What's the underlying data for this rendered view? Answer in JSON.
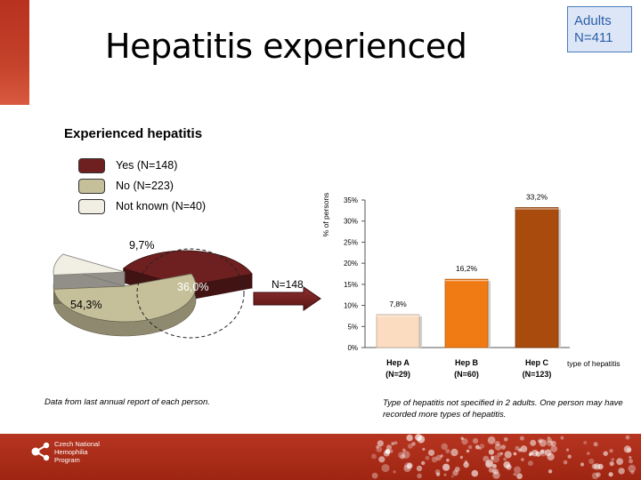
{
  "slide": {
    "title": "Hepatitis experienced",
    "badge_line1": "Adults",
    "badge_line2": "N=411"
  },
  "pie": {
    "title": "Experienced hepatitis",
    "legend": [
      {
        "label": "Yes (N=148)",
        "color": "#6e2020"
      },
      {
        "label": "No (N=223)",
        "color": "#c6c09a"
      },
      {
        "label": "Not known (N=40)",
        "color": "#f1efe3"
      }
    ],
    "labels": {
      "yes": "36,0%",
      "no": "54,3%",
      "unknown": "9,7%"
    }
  },
  "arrow_label": "N=148",
  "notes": {
    "left": "Data from last annual report of each person.",
    "right": "Type of hepatitis not specified in 2 adults. One person may have recorded more types of hepatitis."
  },
  "footer": {
    "line1": "Czech National",
    "line2": "Hemophilia",
    "line3": "Program"
  },
  "chart_data": [
    {
      "type": "pie",
      "title": "Experienced hepatitis",
      "categories": [
        "Yes (N=148)",
        "No (N=223)",
        "Not known (N=40)"
      ],
      "values": [
        36.0,
        54.3,
        9.7
      ],
      "data_labels": [
        "36,0%",
        "54,3%",
        "9,7%"
      ],
      "colors": [
        "#6e2020",
        "#c6c09a",
        "#f1efe3"
      ]
    },
    {
      "type": "bar",
      "categories": [
        "Hep A",
        "Hep B",
        "Hep C"
      ],
      "category_subtitles": [
        "(N=29)",
        "(N=60)",
        "(N=123)"
      ],
      "values": [
        7.8,
        16.2,
        33.2
      ],
      "data_labels": [
        "7,8%",
        "16,2%",
        "33,2%"
      ],
      "colors": [
        "#fbdcc0",
        "#f07a14",
        "#a84b0c"
      ],
      "xlabel": "type of hepatitis",
      "ylabel": "% of persons",
      "ylim": [
        0,
        35
      ],
      "yticks": [
        0,
        5,
        10,
        15,
        20,
        25,
        30,
        35
      ],
      "ytick_labels": [
        "0%",
        "5%",
        "10%",
        "15%",
        "20%",
        "25%",
        "30%",
        "35%"
      ],
      "grid": false
    }
  ]
}
